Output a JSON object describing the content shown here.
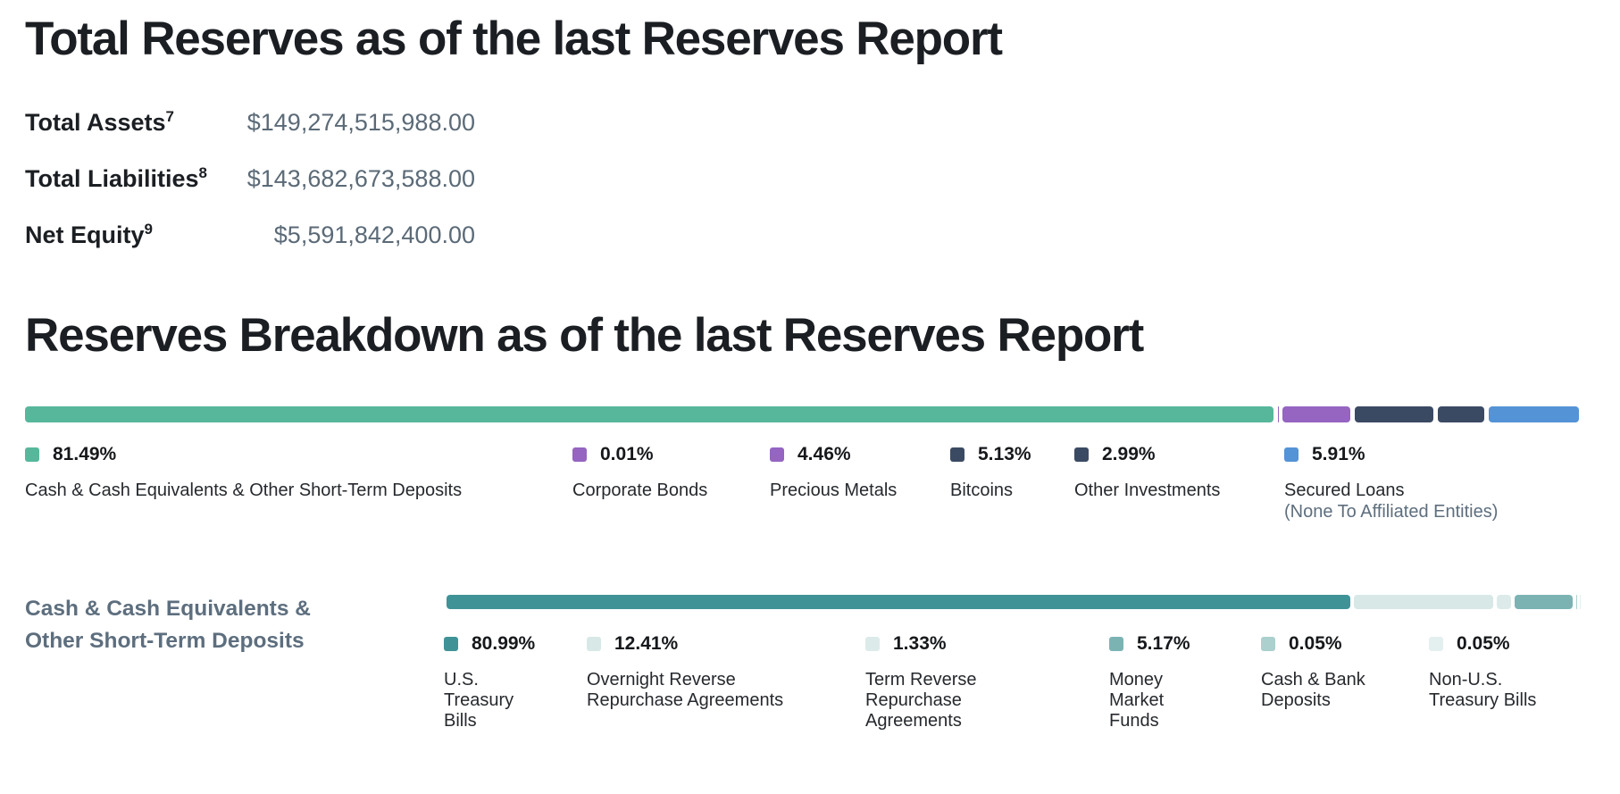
{
  "sections": {
    "total_reserves": {
      "title": "Total Reserves as of the last Reserves Report"
    },
    "breakdown": {
      "title": "Reserves Breakdown as of the last Reserves Report"
    }
  },
  "totals": {
    "rows": [
      {
        "label": "Total Assets",
        "sup": "7",
        "value": "$149,274,515,988.00"
      },
      {
        "label": "Total Liabilities",
        "sup": "8",
        "value": "$143,682,673,588.00"
      },
      {
        "label": "Net Equity",
        "sup": "9",
        "value": "$5,591,842,400.00"
      }
    ]
  },
  "chart_data": [
    {
      "type": "bar",
      "variant": "stacked-horizontal",
      "title": "Reserves Breakdown as of the last Reserves Report",
      "unit": "percent",
      "xlim": [
        0,
        100
      ],
      "grid": false,
      "legend_position": "below",
      "segments": [
        {
          "label": "Cash & Cash Equivalents & Other Short-Term Deposits",
          "value": 81.49,
          "pct": "81.49%",
          "color": "#56b79b",
          "sublabel": ""
        },
        {
          "label": "Corporate Bonds",
          "value": 0.01,
          "pct": "0.01%",
          "color": "#9565c1",
          "sublabel": ""
        },
        {
          "label": "Precious Metals",
          "value": 4.46,
          "pct": "4.46%",
          "color": "#9565c1",
          "sublabel": ""
        },
        {
          "label": "Bitcoins",
          "value": 5.13,
          "pct": "5.13%",
          "color": "#3b4a63",
          "sublabel": ""
        },
        {
          "label": "Other Investments",
          "value": 2.99,
          "pct": "2.99%",
          "color": "#3b4a63",
          "sublabel": ""
        },
        {
          "label": "Secured Loans",
          "value": 5.91,
          "pct": "5.91%",
          "color": "#5493d6",
          "sublabel": "(None To Affiliated Entities)"
        }
      ]
    },
    {
      "type": "bar",
      "variant": "stacked-horizontal",
      "title": "Cash & Cash Equivalents & Other Short-Term Deposits",
      "title_lines": {
        "0": "Cash & Cash Equivalents &",
        "1": "Other Short-Term Deposits"
      },
      "unit": "percent",
      "xlim": [
        0,
        100
      ],
      "grid": false,
      "legend_position": "below",
      "segments": [
        {
          "label": "U.S. Treasury Bills",
          "value": 80.99,
          "pct": "80.99%",
          "color": "#3f9396",
          "sublabel": ""
        },
        {
          "label": "Overnight Reverse Repurchase Agreements",
          "value": 12.41,
          "pct": "12.41%",
          "color": "#d7e8e7",
          "sublabel": ""
        },
        {
          "label": "Term Reverse Repurchase Agreements",
          "value": 1.33,
          "pct": "1.33%",
          "color": "#dcebea",
          "sublabel": ""
        },
        {
          "label": "Money Market Funds",
          "value": 5.17,
          "pct": "5.17%",
          "color": "#7bb3b3",
          "sublabel": ""
        },
        {
          "label": "Cash & Bank Deposits",
          "value": 0.05,
          "pct": "0.05%",
          "color": "#abd0cd",
          "sublabel": ""
        },
        {
          "label": "Non-U.S. Treasury Bills",
          "value": 0.05,
          "pct": "0.05%",
          "color": "#e4eff0",
          "sublabel": ""
        }
      ]
    }
  ]
}
